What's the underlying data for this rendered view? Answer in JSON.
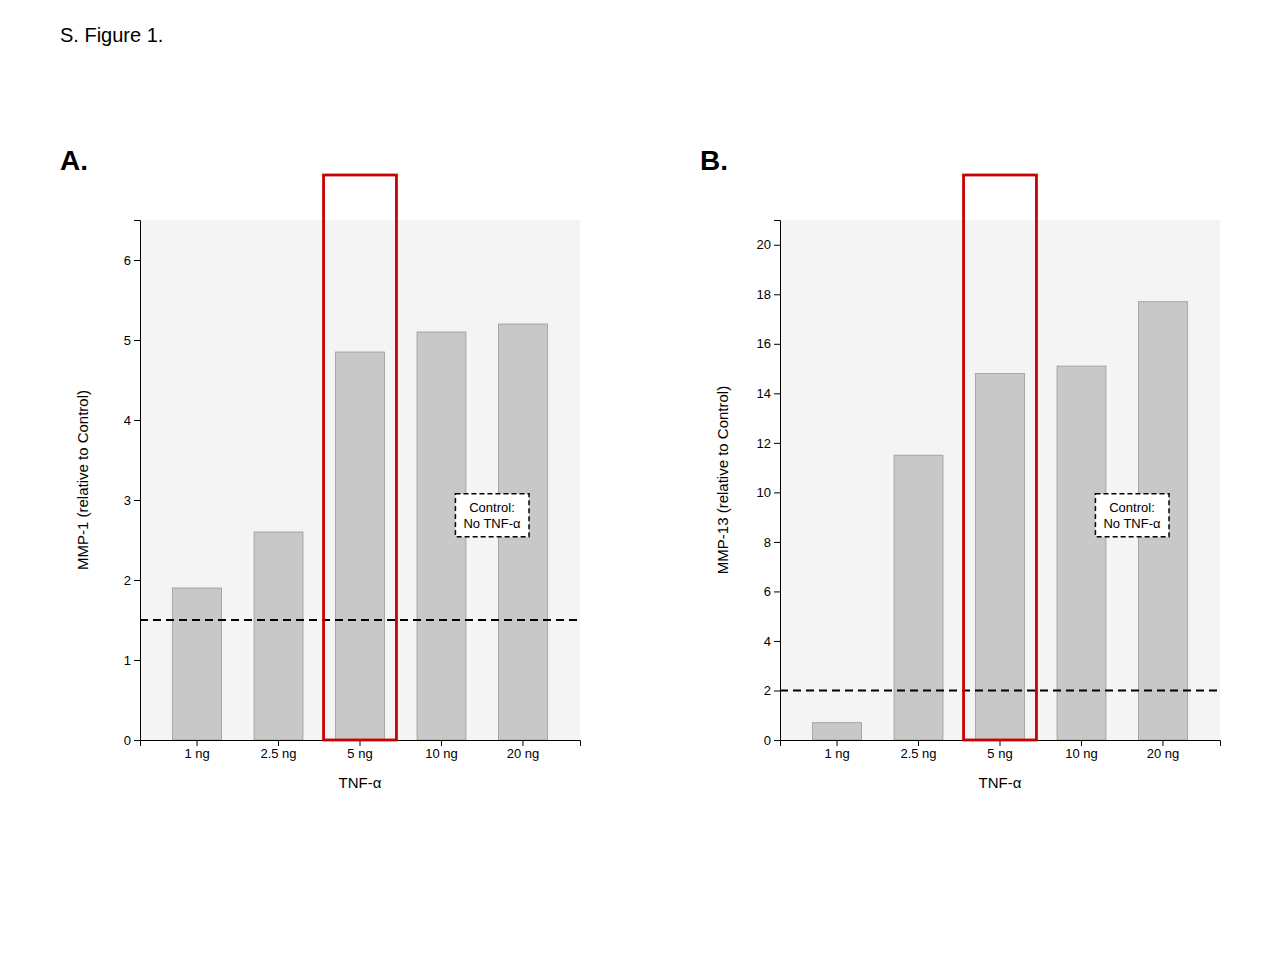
{
  "title": "S. Figure 1.",
  "chart_data": [
    {
      "type": "bar",
      "title": "A.",
      "xlabel": "TNF-α",
      "ylabel": "MMP-1 (relative to Control)",
      "categories": [
        "1 ng",
        "2.5 ng",
        "5 ng",
        "10 ng",
        "20 ng"
      ],
      "values": [
        1.9,
        2.6,
        4.85,
        5.1,
        5.2
      ],
      "color": "#c8c8c8",
      "ylim": [
        0,
        6.5
      ],
      "yticks": [
        0,
        1,
        2,
        3,
        4,
        5,
        6
      ],
      "grid": false,
      "reference_line": {
        "y": 1.5,
        "line_style": "dashed",
        "color": "#000000"
      },
      "highlight": {
        "index": 2,
        "color": "#cc0000"
      },
      "annotations": [
        "Control:\nNo TNF-α"
      ]
    },
    {
      "type": "bar",
      "title": "B.",
      "xlabel": "TNF-α",
      "ylabel": "MMP-13 (relative to Control)",
      "categories": [
        "1 ng",
        "2.5 ng",
        "5 ng",
        "10 ng",
        "20 ng"
      ],
      "values": [
        0.7,
        11.5,
        14.8,
        15.1,
        17.7
      ],
      "color": "#c8c8c8",
      "ylim": [
        0,
        21
      ],
      "yticks": [
        0,
        2,
        4,
        6,
        8,
        10,
        12,
        14,
        16,
        18,
        20
      ],
      "grid": false,
      "reference_line": {
        "y": 2.0,
        "line_style": "dashed",
        "color": "#000000"
      },
      "highlight": {
        "index": 2,
        "color": "#cc0000"
      },
      "annotations": [
        "Control:\nNo TNF-α"
      ]
    }
  ]
}
